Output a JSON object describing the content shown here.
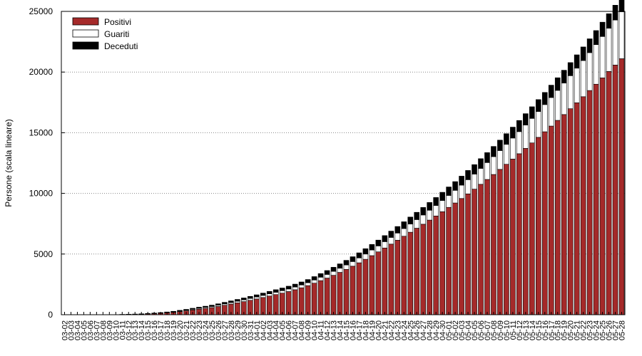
{
  "chart_data": {
    "type": "bar",
    "stacked": true,
    "ylabel": "Persone (scala lineare)",
    "xlabel": "",
    "title": "",
    "ylim": [
      0,
      25000
    ],
    "yticks": [
      0,
      5000,
      10000,
      15000,
      20000,
      25000
    ],
    "grid": "horizontal-dotted",
    "legend_position": "top-left",
    "categories": [
      "03-02",
      "03-03",
      "03-04",
      "03-05",
      "03-06",
      "03-07",
      "03-08",
      "03-09",
      "03-10",
      "03-11",
      "03-12",
      "03-13",
      "03-14",
      "03-15",
      "03-16",
      "03-17",
      "03-18",
      "03-19",
      "03-20",
      "03-21",
      "03-22",
      "03-23",
      "03-24",
      "03-25",
      "03-26",
      "03-27",
      "03-28",
      "03-29",
      "03-30",
      "03-31",
      "04-01",
      "04-02",
      "04-03",
      "04-04",
      "04-05",
      "04-06",
      "04-07",
      "04-08",
      "04-09",
      "04-10",
      "04-11",
      "04-12",
      "04-13",
      "04-14",
      "04-15",
      "04-16",
      "04-17",
      "04-18",
      "04-19",
      "04-20",
      "04-21",
      "04-22",
      "04-23",
      "04-24",
      "04-25",
      "04-26",
      "04-27",
      "04-28",
      "04-29",
      "04-30",
      "05-01",
      "05-02",
      "05-03",
      "05-04",
      "05-05",
      "05-06",
      "05-07",
      "05-08",
      "05-09",
      "05-10",
      "05-11",
      "05-12",
      "05-13",
      "05-14",
      "05-15",
      "05-16",
      "05-17",
      "05-18",
      "05-19",
      "05-20",
      "05-21",
      "05-22",
      "05-23",
      "05-24",
      "05-25",
      "05-26",
      "05-27",
      "05-28"
    ],
    "series": [
      {
        "name": "Positivi",
        "color": "#a52a2a",
        "values": [
          0,
          0,
          0,
          0,
          0,
          0,
          0,
          0,
          0,
          20,
          30,
          40,
          50,
          70,
          90,
          120,
          160,
          200,
          260,
          320,
          390,
          460,
          520,
          590,
          680,
          780,
          880,
          980,
          1080,
          1190,
          1300,
          1420,
          1540,
          1660,
          1780,
          1910,
          2060,
          2220,
          2400,
          2600,
          2810,
          3020,
          3250,
          3490,
          3740,
          4000,
          4280,
          4570,
          4870,
          5180,
          5500,
          5820,
          6140,
          6470,
          6800,
          7130,
          7460,
          7800,
          8140,
          8490,
          8850,
          9210,
          9580,
          9960,
          10350,
          10750,
          11150,
          11560,
          11980,
          12400,
          12830,
          13270,
          13710,
          14160,
          14620,
          15080,
          15550,
          16020,
          16500,
          16980,
          17470,
          17970,
          18480,
          19000,
          19520,
          20050,
          20580,
          21100
        ],
        "values_note": ""
      },
      {
        "name": "Guariti",
        "color": "#ffffff",
        "values": [
          0,
          0,
          0,
          0,
          0,
          0,
          0,
          0,
          0,
          0,
          0,
          0,
          5,
          10,
          15,
          20,
          25,
          30,
          40,
          50,
          60,
          70,
          80,
          90,
          100,
          110,
          120,
          130,
          140,
          150,
          160,
          170,
          180,
          190,
          200,
          210,
          220,
          230,
          240,
          260,
          280,
          300,
          320,
          340,
          360,
          380,
          400,
          430,
          460,
          490,
          520,
          550,
          590,
          630,
          670,
          710,
          760,
          810,
          860,
          920,
          980,
          1040,
          1100,
          1170,
          1240,
          1310,
          1390,
          1470,
          1550,
          1640,
          1730,
          1820,
          1920,
          2020,
          2130,
          2240,
          2350,
          2470,
          2590,
          2720,
          2850,
          2980,
          3120,
          3260,
          3410,
          3560,
          3710,
          3870
        ]
      },
      {
        "name": "Deceduti",
        "color": "#000000",
        "values": [
          0,
          0,
          0,
          0,
          0,
          0,
          0,
          0,
          0,
          5,
          10,
          15,
          20,
          25,
          30,
          35,
          40,
          50,
          60,
          70,
          80,
          90,
          100,
          110,
          120,
          130,
          140,
          150,
          160,
          170,
          180,
          190,
          200,
          210,
          220,
          230,
          240,
          250,
          260,
          280,
          300,
          320,
          340,
          360,
          380,
          400,
          420,
          440,
          460,
          480,
          500,
          520,
          540,
          560,
          580,
          600,
          620,
          640,
          660,
          680,
          700,
          720,
          740,
          760,
          780,
          800,
          820,
          840,
          860,
          880,
          900,
          920,
          940,
          960,
          980,
          1000,
          1020,
          1040,
          1060,
          1080,
          1100,
          1120,
          1140,
          1160,
          1180,
          1200,
          1220,
          1240
        ]
      }
    ]
  }
}
